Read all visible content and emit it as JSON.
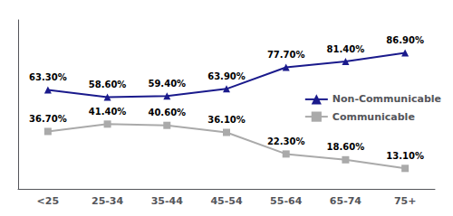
{
  "chart_data": {
    "type": "line",
    "categories": [
      "<25",
      "25-34",
      "35-44",
      "45-54",
      "55-64",
      "65-74",
      "75+"
    ],
    "series": [
      {
        "name": "Non-Communicable",
        "color": "#1a1a8c",
        "marker": "triangle",
        "values": [
          63.3,
          58.6,
          59.4,
          63.9,
          77.7,
          81.4,
          86.9
        ],
        "value_labels": [
          "63.30%",
          "58.60%",
          "59.40%",
          "63.90%",
          "77.70%",
          "81.40%",
          "86.90%"
        ]
      },
      {
        "name": "Communicable",
        "color": "#aaaaaa",
        "marker": "square",
        "values": [
          36.7,
          41.4,
          40.6,
          36.1,
          22.3,
          18.6,
          13.1
        ],
        "value_labels": [
          "36.70%",
          "41.40%",
          "40.60%",
          "36.10%",
          "22.30%",
          "18.60%",
          "13.10%"
        ]
      }
    ],
    "ylim": [
      0,
      108
    ],
    "data_labels": true,
    "tick_labels": "x",
    "grid": false,
    "legend": "right"
  }
}
